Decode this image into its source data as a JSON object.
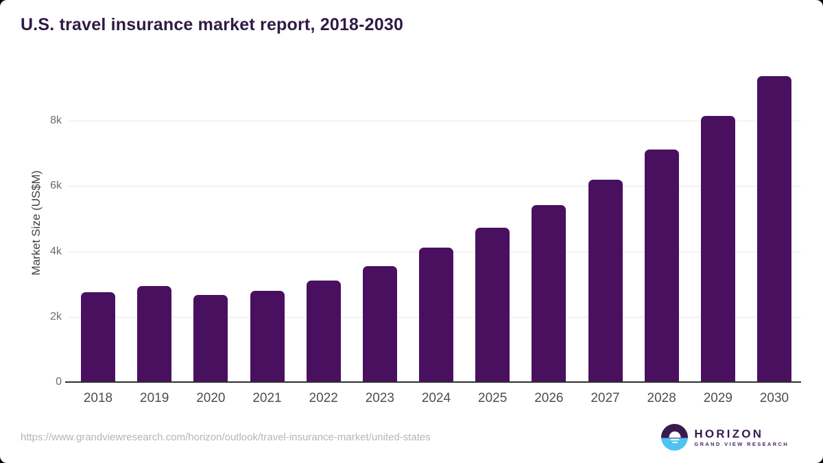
{
  "title": "U.S. travel insurance market report, 2018-2030",
  "chart_data": {
    "type": "bar",
    "title": "U.S. travel insurance market report, 2018-2030",
    "categories": [
      "2018",
      "2019",
      "2020",
      "2021",
      "2022",
      "2023",
      "2024",
      "2025",
      "2026",
      "2027",
      "2028",
      "2029",
      "2030"
    ],
    "values": [
      2750,
      2950,
      2670,
      2790,
      3100,
      3560,
      4120,
      4730,
      5410,
      6200,
      7120,
      8150,
      9370
    ],
    "xlabel": "",
    "ylabel": "Market Size (US$M)",
    "ylim": [
      0,
      9810
    ],
    "yticks": [
      {
        "value": 0,
        "label": "0"
      },
      {
        "value": 2000,
        "label": "2k"
      },
      {
        "value": 4000,
        "label": "4k"
      },
      {
        "value": 6000,
        "label": "6k"
      },
      {
        "value": 8000,
        "label": "8k"
      }
    ],
    "grid": "horizontal",
    "legend": "none",
    "bar_color": "#4a1060",
    "grid_color": "#e9e7ea",
    "axis_line_color": "#2f2f2f"
  },
  "footer": {
    "source_url": "https://www.grandviewresearch.com/horizon/outlook/travel-insurance-market/united-states",
    "logo": {
      "name": "HORIZON",
      "subtitle": "GRAND VIEW RESEARCH"
    }
  },
  "colors": {
    "title": "#301a47",
    "background": "#ffffff",
    "logo_purple": "#3a1a4e",
    "logo_blue": "#4ec3f1"
  }
}
